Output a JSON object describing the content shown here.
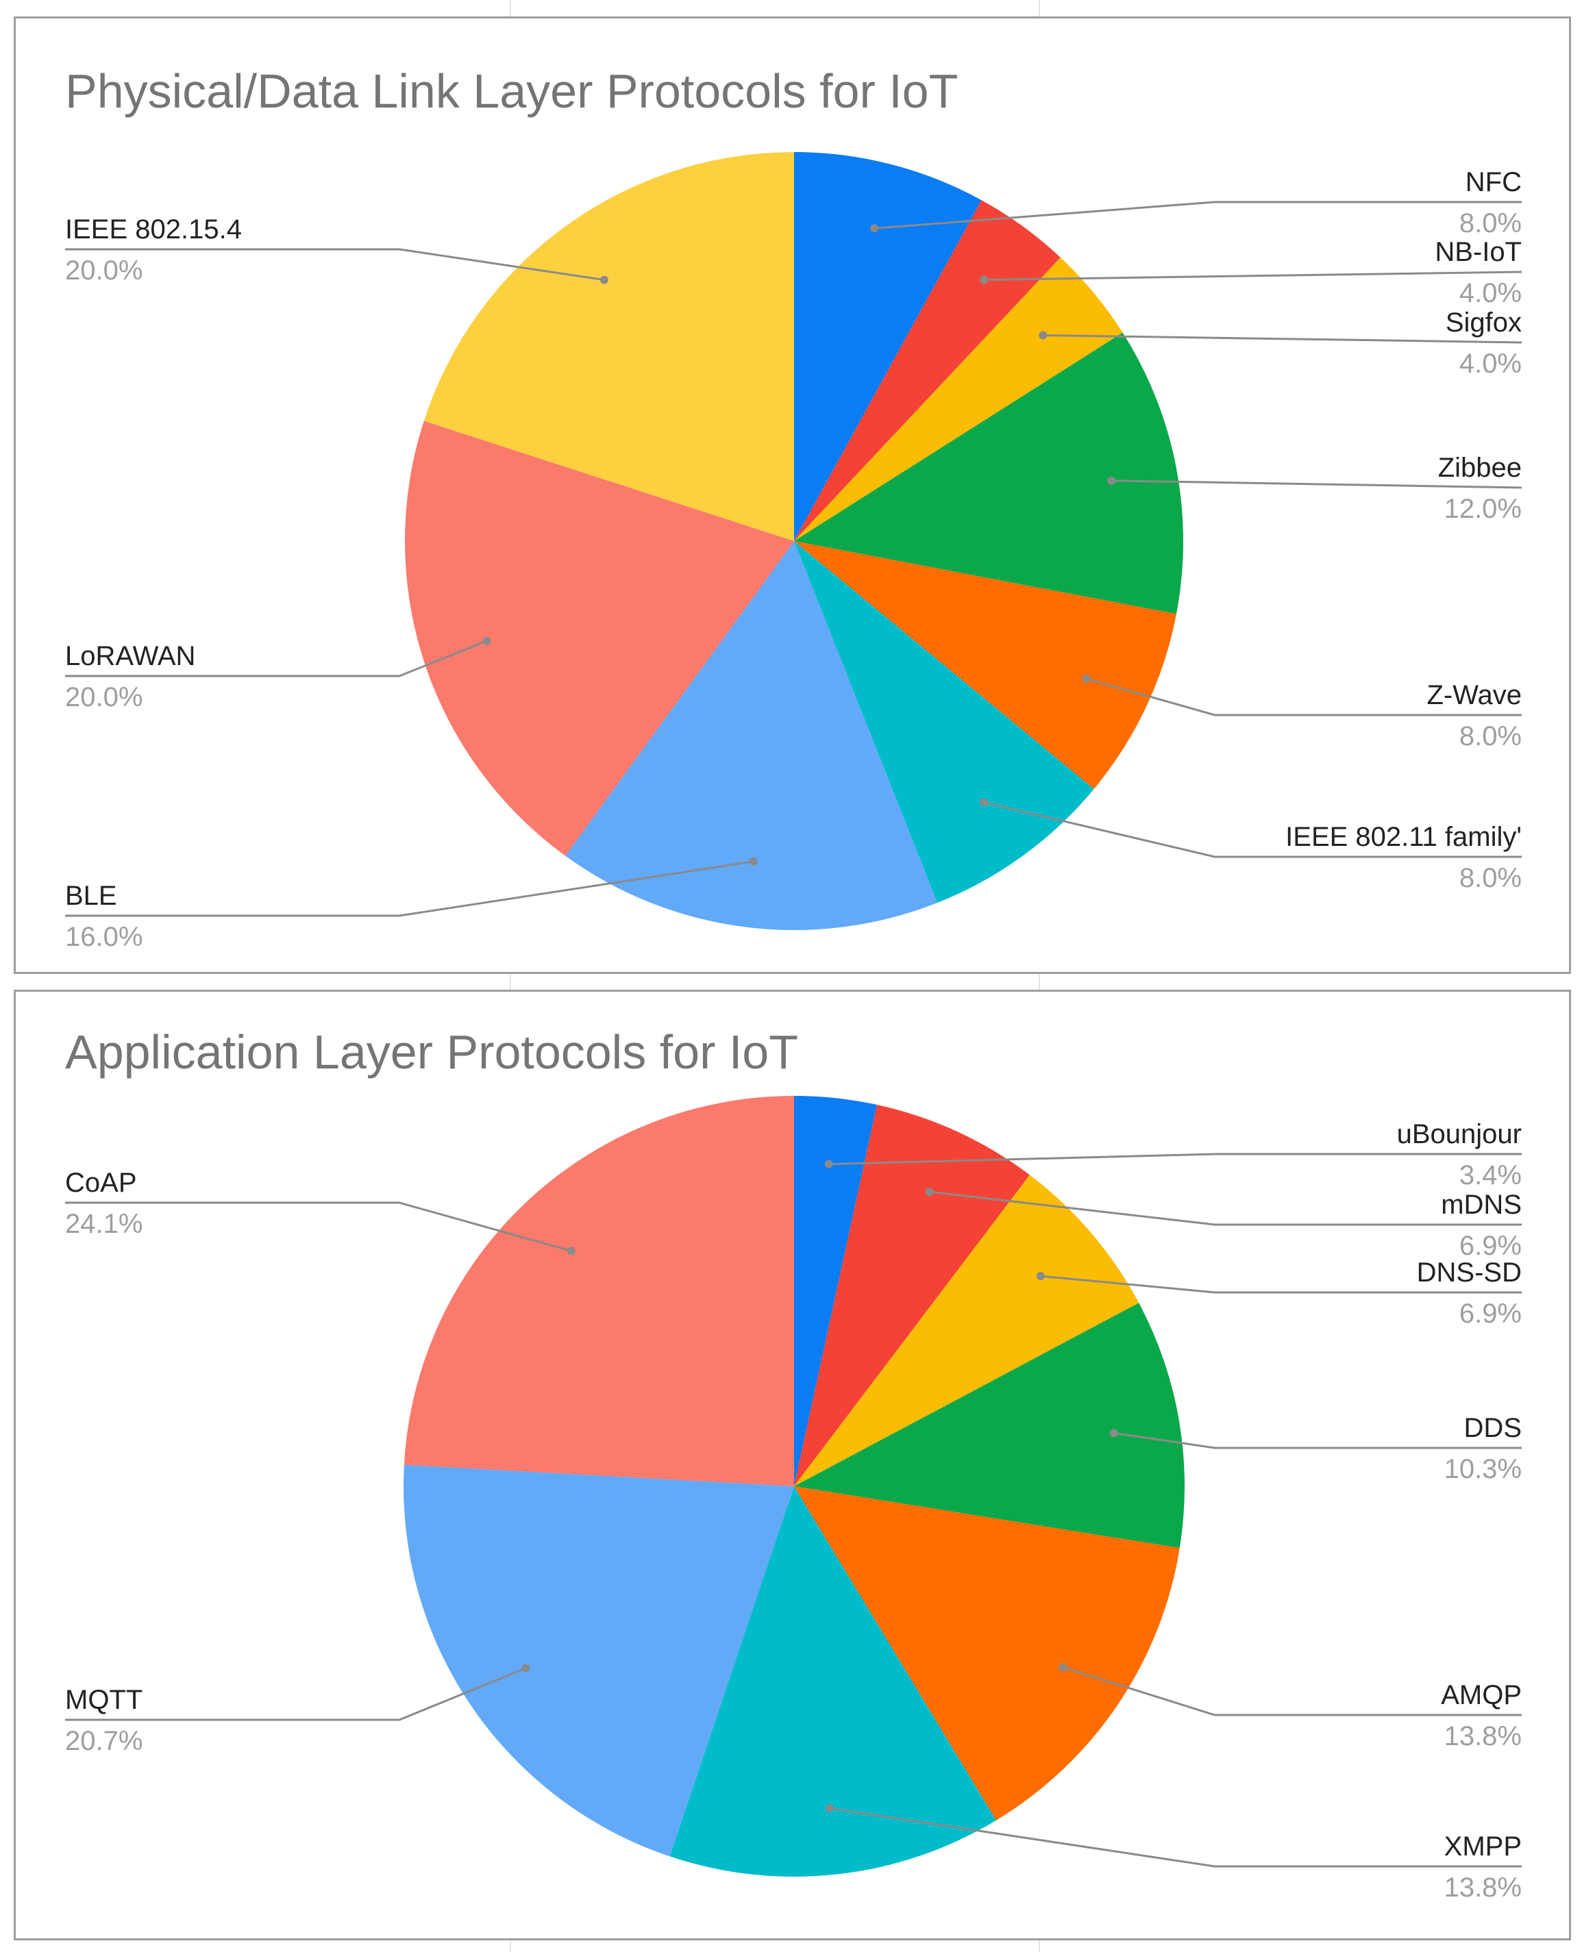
{
  "colors": {
    "background": "#ffffff",
    "panel_border": "#9e9e9e",
    "title_text": "#757575",
    "label_text": "#222222",
    "percent_text": "#9e9e9e",
    "leader_line": "#8a8a8a",
    "palette": [
      "#0a7cf4",
      "#f44336",
      "#fbbc04",
      "#0aa84a",
      "#ff6d01",
      "#00bcca",
      "#62a9f8",
      "#fb7a6c",
      "#fdd03f"
    ]
  },
  "chart_data": [
    {
      "type": "pie",
      "title": "Physical/Data Link Layer Protocols for IoT",
      "start_angle": "12 o'clock",
      "direction": "clockwise",
      "legend": "none",
      "slices": [
        {
          "label": "NFC",
          "percent_label": "8.0%",
          "value": 8.0,
          "color": "#0a7cf4",
          "side": "right"
        },
        {
          "label": "NB-IoT",
          "percent_label": "4.0%",
          "value": 4.0,
          "color": "#f44336",
          "side": "right"
        },
        {
          "label": "Sigfox",
          "percent_label": "4.0%",
          "value": 4.0,
          "color": "#fbbc04",
          "side": "right"
        },
        {
          "label": "Zibbee",
          "percent_label": "12.0%",
          "value": 12.0,
          "color": "#0aa84a",
          "side": "right"
        },
        {
          "label": "Z-Wave",
          "percent_label": "8.0%",
          "value": 8.0,
          "color": "#ff6d01",
          "side": "right"
        },
        {
          "label": "IEEE 802.11 family'",
          "percent_label": "8.0%",
          "value": 8.0,
          "color": "#00bcca",
          "side": "right"
        },
        {
          "label": "BLE",
          "percent_label": "16.0%",
          "value": 16.0,
          "color": "#62a9f8",
          "side": "left"
        },
        {
          "label": "LoRAWAN",
          "percent_label": "20.0%",
          "value": 20.0,
          "color": "#fb7a6c",
          "side": "left"
        },
        {
          "label": "IEEE 802.15.4",
          "percent_label": "20.0%",
          "value": 20.0,
          "color": "#fdd03f",
          "side": "left"
        }
      ]
    },
    {
      "type": "pie",
      "title": "Application Layer Protocols for IoT",
      "start_angle": "12 o'clock",
      "direction": "clockwise",
      "legend": "none",
      "slices": [
        {
          "label": "uBounjour",
          "percent_label": "3.4%",
          "value": 3.4,
          "color": "#0a7cf4",
          "side": "right"
        },
        {
          "label": "mDNS",
          "percent_label": "6.9%",
          "value": 6.9,
          "color": "#f44336",
          "side": "right"
        },
        {
          "label": "DNS-SD",
          "percent_label": "6.9%",
          "value": 6.9,
          "color": "#fbbc04",
          "side": "right"
        },
        {
          "label": "DDS",
          "percent_label": "10.3%",
          "value": 10.3,
          "color": "#0aa84a",
          "side": "right"
        },
        {
          "label": "AMQP",
          "percent_label": "13.8%",
          "value": 13.8,
          "color": "#ff6d01",
          "side": "right"
        },
        {
          "label": "XMPP",
          "percent_label": "13.8%",
          "value": 13.8,
          "color": "#00bcca",
          "side": "right"
        },
        {
          "label": "MQTT",
          "percent_label": "20.7%",
          "value": 20.7,
          "color": "#62a9f8",
          "side": "left"
        },
        {
          "label": "CoAP",
          "percent_label": "24.1%",
          "value": 24.1,
          "color": "#fb7a6c",
          "side": "left"
        }
      ]
    }
  ]
}
